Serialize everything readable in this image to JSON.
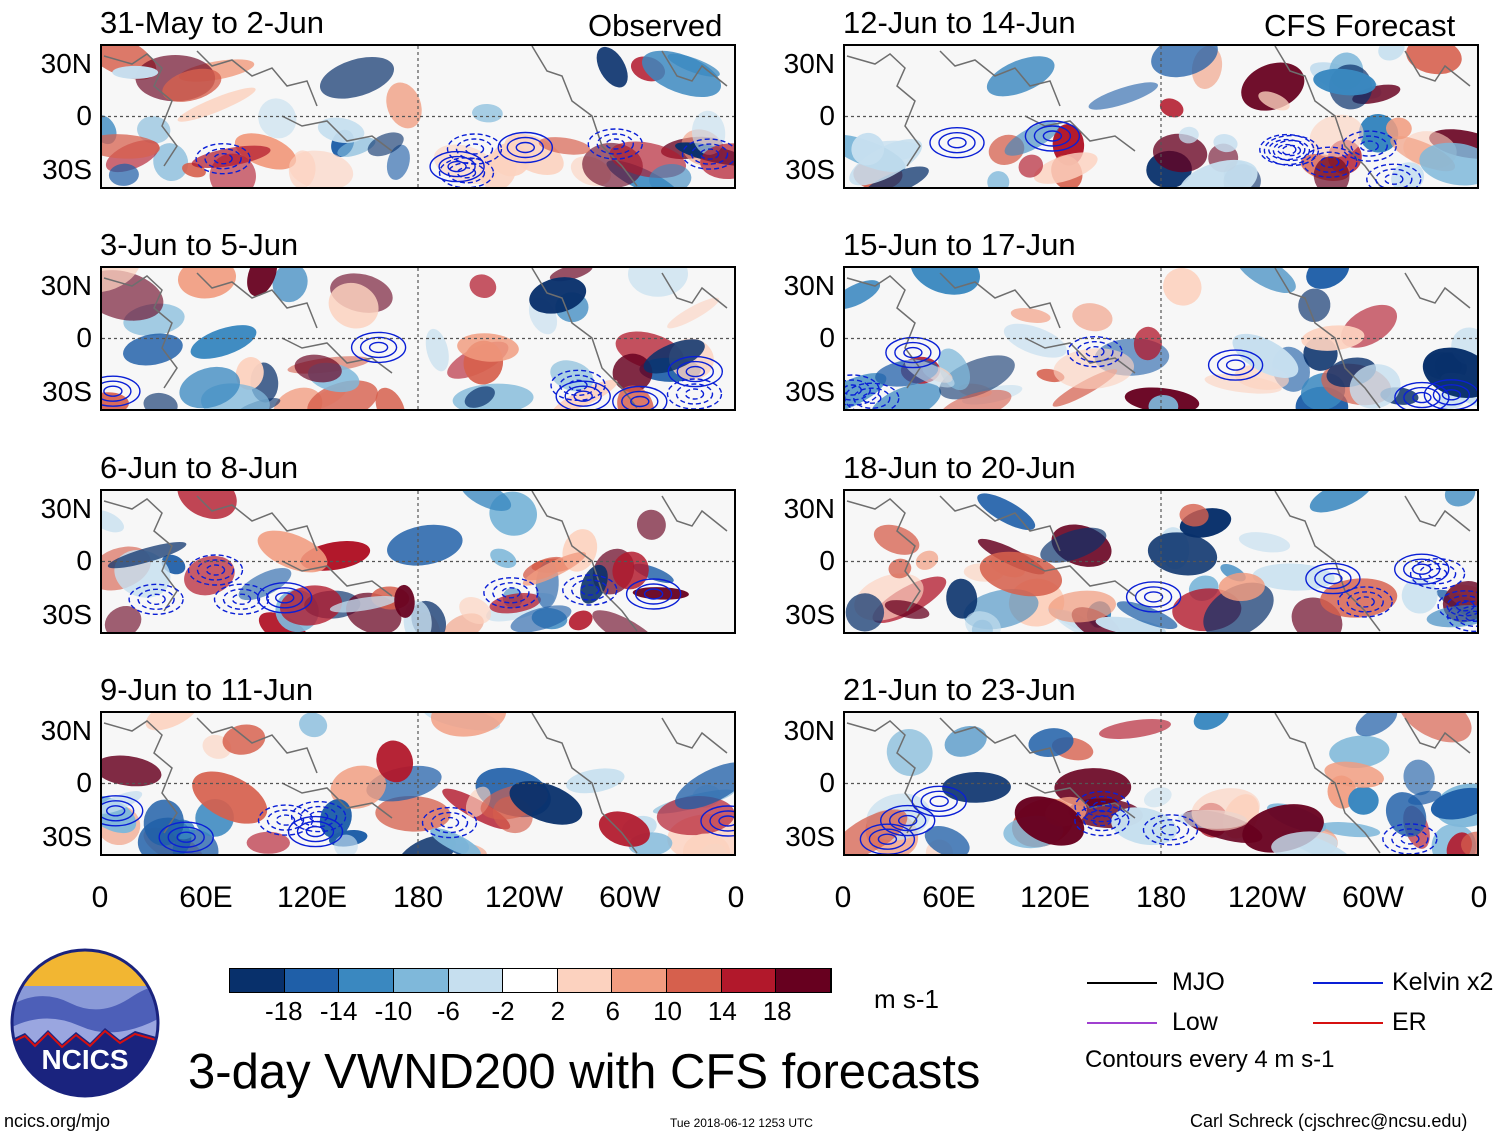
{
  "header": {
    "observed_label": "Observed",
    "forecast_label": "CFS Forecast"
  },
  "panels_left": [
    {
      "period": "31-May to 2-Jun",
      "seed": 3
    },
    {
      "period": "3-Jun to 5-Jun",
      "seed": 11
    },
    {
      "period": "6-Jun to 8-Jun",
      "seed": 19
    },
    {
      "period": "9-Jun to 11-Jun",
      "seed": 27
    }
  ],
  "panels_right": [
    {
      "period": "12-Jun to 14-Jun",
      "seed": 37
    },
    {
      "period": "15-Jun to 17-Jun",
      "seed": 43
    },
    {
      "period": "18-Jun to 20-Jun",
      "seed": 53
    },
    {
      "period": "21-Jun to 23-Jun",
      "seed": 61
    }
  ],
  "axes": {
    "lat_labels": [
      "30N",
      "0",
      "30S"
    ],
    "lon_labels": [
      "0",
      "60E",
      "120E",
      "180",
      "120W",
      "60W",
      "0"
    ]
  },
  "colorbar": {
    "ticks": [
      "-18",
      "-14",
      "-10",
      "-6",
      "-2",
      "2",
      "6",
      "10",
      "14",
      "18"
    ],
    "colors": [
      "#08306b",
      "#1f5fa8",
      "#3a88c0",
      "#7fb8da",
      "#c6dfef",
      "#ffffff",
      "#fcd2bf",
      "#f19c80",
      "#d6604d",
      "#b2182b",
      "#67001f"
    ],
    "units": "m s-1"
  },
  "legend": {
    "items": [
      {
        "label": "MJO",
        "color": "#000000"
      },
      {
        "label": "Kelvin x2",
        "color": "#0a1fd6"
      },
      {
        "label": "Low",
        "color": "#a040d0"
      },
      {
        "label": "ER",
        "color": "#d61010"
      }
    ],
    "contour_note": "Contours every 4 m s-1"
  },
  "logo": {
    "text": "NCICS"
  },
  "footer": {
    "main_title": "3-day VWND200 with CFS forecasts",
    "url": "ncics.org/mjo",
    "timestamp": "Tue 2018-06-12 1253 UTC",
    "credit": "Carl Schreck (cjschrec@ncsu.edu)"
  }
}
